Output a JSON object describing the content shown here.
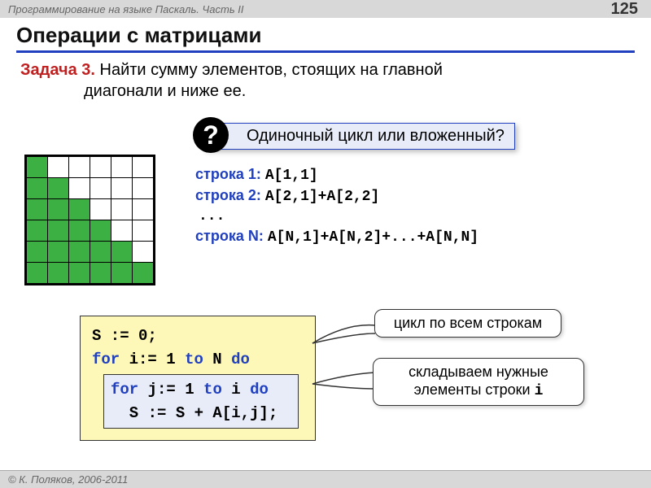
{
  "header": {
    "course": "Программирование на языке Паскаль. Часть II",
    "page": "125"
  },
  "title": "Операции с матрицами",
  "task": {
    "label": "Задача 3.",
    "text_line1": " Найти сумму элементов, стоящих  на главной",
    "text_line2": "диагонали и ниже ее."
  },
  "question": {
    "badge": "?",
    "text": "Одиночный цикл или вложенный?"
  },
  "matrix": {
    "size": 6,
    "fill_color": "#3cb043",
    "empty_color": "#ffffff",
    "border_color": "#000000",
    "cells": [
      [
        1,
        0,
        0,
        0,
        0,
        0
      ],
      [
        1,
        1,
        0,
        0,
        0,
        0
      ],
      [
        1,
        1,
        1,
        0,
        0,
        0
      ],
      [
        1,
        1,
        1,
        1,
        0,
        0
      ],
      [
        1,
        1,
        1,
        1,
        1,
        0
      ],
      [
        1,
        1,
        1,
        1,
        1,
        1
      ]
    ]
  },
  "rows": {
    "r1_label": "строка 1:",
    "r1_code": "A[1,1]",
    "r2_label": "строка 2:",
    "r2_code": "A[2,1]+A[2,2]",
    "ellipsis": "...",
    "rn_label": "строка N:",
    "rn_code": "A[N,1]+A[N,2]+...+A[N,N]"
  },
  "code": {
    "line1_a": "S := 0;",
    "line2_kw": "for",
    "line2_rest": " i:= 1 ",
    "line2_kw2": "to",
    "line2_rest2": " N ",
    "line2_kw3": "do",
    "inner1_kw": "for",
    "inner1_rest": " j:= 1 ",
    "inner1_kw2": "to",
    "inner1_rest2": " i ",
    "inner1_kw3": "do",
    "inner2": "  S := S + A[i,j];"
  },
  "callouts": {
    "c1": "цикл по всем строкам",
    "c2a": "складываем нужные",
    "c2b": "элементы строки ",
    "c2c": "i"
  },
  "footer": "© К. Поляков, 2006-2011",
  "colors": {
    "accent": "#2040c0",
    "task_label": "#c02020",
    "code_bg": "#fdf8b8",
    "box_bg": "#e8ecf8"
  }
}
